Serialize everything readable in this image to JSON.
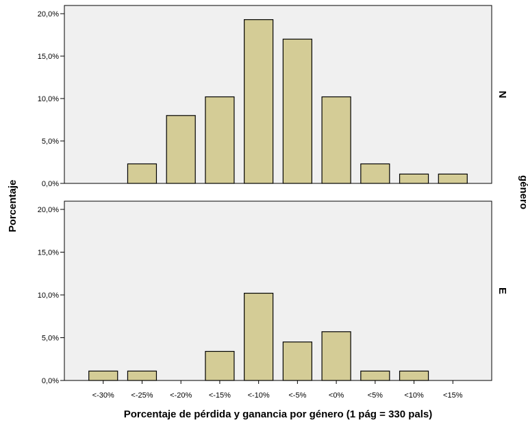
{
  "chart_data": {
    "type": "bar",
    "categories": [
      "<-30%",
      "<-25%",
      "<-20%",
      "<-15%",
      "<-10%",
      "<-5%",
      "<0%",
      "<5%",
      "<10%",
      "<15%"
    ],
    "xlabel": "Porcentaje de pérdida y ganancia por género (1 pág = 330 pals)",
    "ylabel": "Porcentaje",
    "facet_label": "género",
    "ylim": [
      0,
      20
    ],
    "yticks": [
      0,
      5,
      10,
      15,
      20
    ],
    "ytick_labels": [
      "0,0%",
      "5,0%",
      "10,0%",
      "15,0%",
      "20,0%"
    ],
    "grid": false,
    "colors": {
      "bar": "#d4cc96",
      "panel_bg": "#f0f0f0",
      "edge": "#000000"
    },
    "panels": [
      {
        "label": "N",
        "values": [
          0,
          2.3,
          8.0,
          10.2,
          19.3,
          17.0,
          10.2,
          2.3,
          1.1,
          1.1
        ]
      },
      {
        "label": "E",
        "values": [
          1.1,
          1.1,
          0,
          3.4,
          10.2,
          4.5,
          5.7,
          1.1,
          1.1,
          0
        ]
      }
    ]
  }
}
